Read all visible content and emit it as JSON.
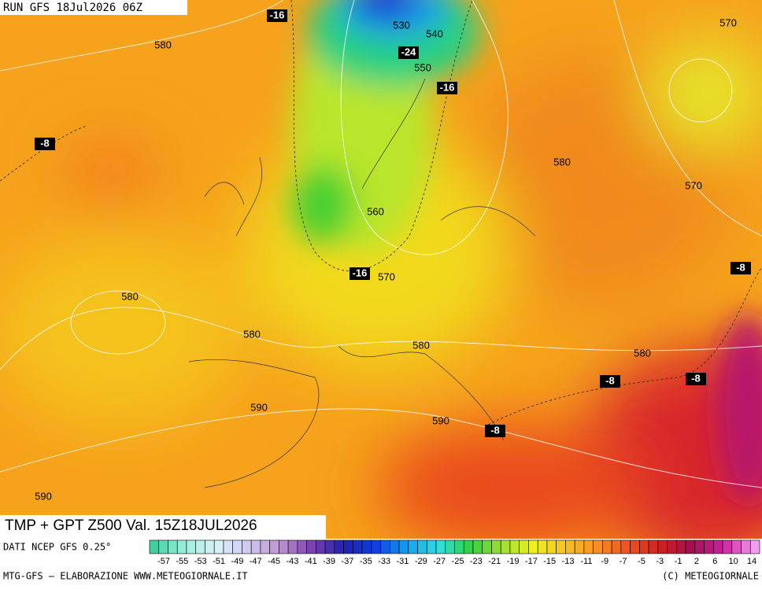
{
  "header": {
    "run": "RUN GFS 18Jul2026 06Z"
  },
  "height_labels": [
    "580",
    "530",
    "540",
    "550",
    "570",
    "580",
    "570",
    "560",
    "570",
    "580",
    "580",
    "580",
    "580",
    "590",
    "590",
    "590"
  ],
  "temperature_labels": [
    "-16",
    "-24",
    "-16",
    "-8",
    "-16",
    "-8",
    "-8",
    "-8",
    "-8"
  ],
  "footer": {
    "title": "TMP + GPT Z500 Val. 15Z18JUL2026",
    "source": "DATI NCEP GFS 0.25°",
    "scale": [
      "-57",
      "-55",
      "-53",
      "-51",
      "-49",
      "-47",
      "-45",
      "-43",
      "-41",
      "-39",
      "-37",
      "-35",
      "-33",
      "-31",
      "-29",
      "-27",
      "-25",
      "-23",
      "-21",
      "-19",
      "-17",
      "-15",
      "-13",
      "-11",
      "-9",
      "-7",
      "-5",
      "-3",
      "-1",
      "2",
      "6",
      "10",
      "14"
    ],
    "credit": "MTG-GFS — ELABORAZIONE WWW.METEOGIORNALE.IT",
    "copyright": "(C) METEOGIORNALE"
  }
}
